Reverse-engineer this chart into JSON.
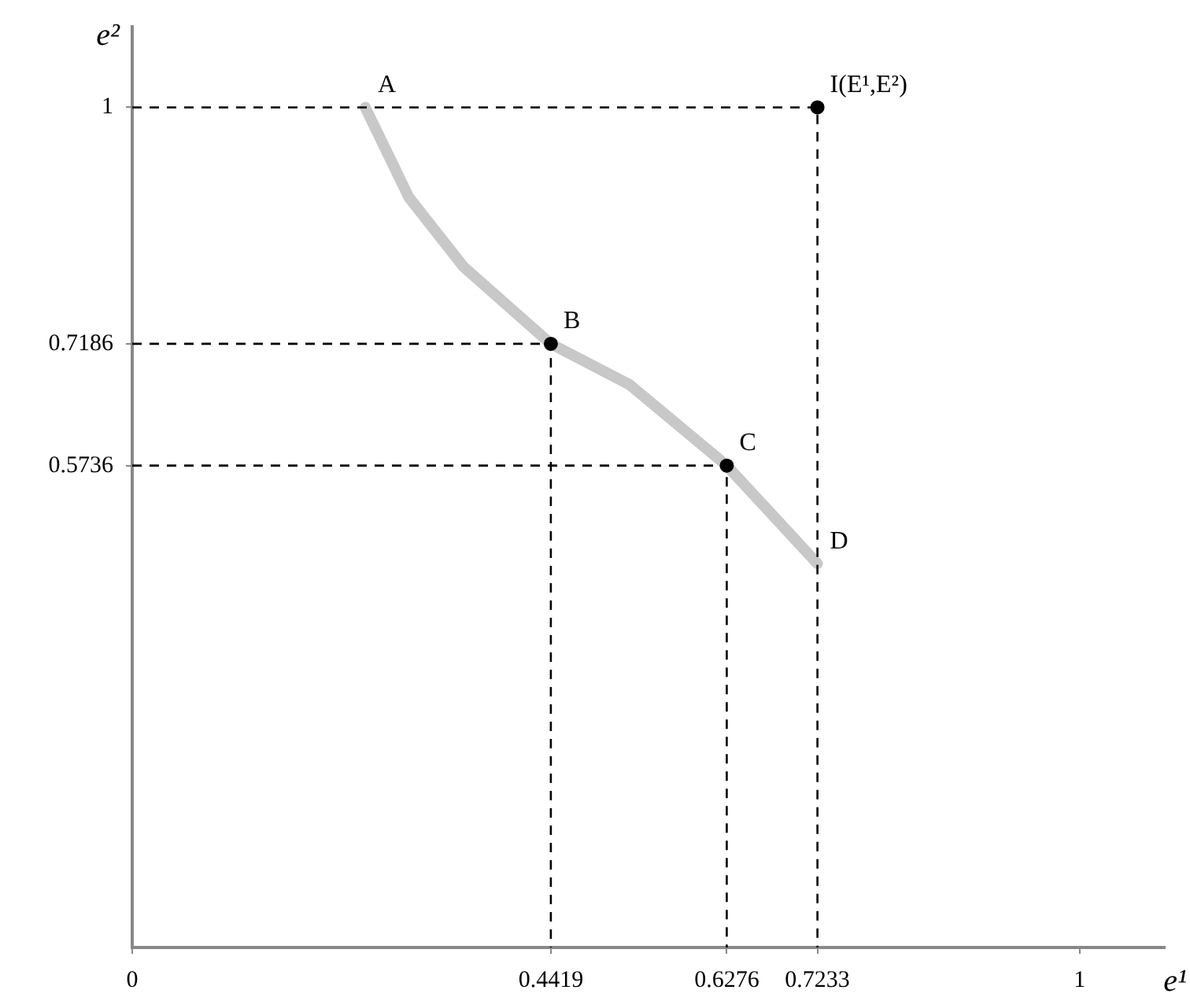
{
  "chart_data": {
    "type": "line",
    "xlabel": "e¹",
    "ylabel": "e²",
    "xlim": [
      0,
      1.09
    ],
    "xticks": [
      0,
      0.4419,
      0.6276,
      0.7233,
      1
    ],
    "ylim": [
      0,
      1.096
    ],
    "yticks": [
      0.5736,
      0.7186,
      1
    ],
    "grid": false,
    "legend": false,
    "series": [
      {
        "color": "#c8c8c8",
        "marker": "none",
        "line_style": "solid",
        "x": [
          0.246,
          0.292,
          0.35,
          0.4419,
          0.525,
          0.6276,
          0.7233
        ],
        "values": [
          1,
          0.893,
          0.81,
          0.7186,
          0.67,
          0.5736,
          0.457
        ]
      },
      {
        "color": "#000000",
        "marker": "none",
        "line_style": "dashed",
        "x": [
          0,
          0.7233,
          0.7233
        ],
        "values": [
          1,
          1,
          0
        ]
      },
      {
        "color": "#000000",
        "marker": "none",
        "line_style": "dashed",
        "x": [
          0,
          0.4419,
          0.4419
        ],
        "values": [
          0.7186,
          0.7186,
          0
        ]
      },
      {
        "color": "#000000",
        "marker": "none",
        "line_style": "dashed",
        "x": [
          0,
          0.6276,
          0.6276
        ],
        "values": [
          0.5736,
          0.5736,
          0
        ]
      },
      {
        "type": "scatter",
        "color": "#000000",
        "marker": "circle",
        "x": [
          0.4419,
          0.6276,
          0.7233
        ],
        "values": [
          0.7186,
          0.5736,
          1
        ]
      }
    ],
    "annotations": [
      {
        "text": "A",
        "x": 0.246,
        "y": 1
      },
      {
        "text": "B",
        "x": 0.4419,
        "y": 0.7186
      },
      {
        "text": "C",
        "x": 0.6276,
        "y": 0.5736
      },
      {
        "text": "D",
        "x": 0.7233,
        "y": 0.457
      },
      {
        "text": "I(E¹,E²)",
        "x": 0.7233,
        "y": 1
      }
    ]
  }
}
